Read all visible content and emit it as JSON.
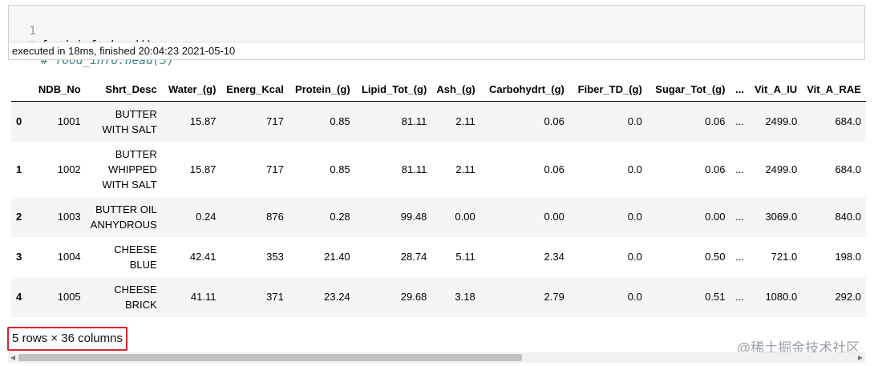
{
  "code_cell": {
    "lines": [
      {
        "num": "1",
        "text": "food_info.head()"
      },
      {
        "num": "2",
        "text": "# food_info.head(3)"
      }
    ],
    "execution_info": "executed in 18ms, finished 20:04:23 2021-05-10"
  },
  "dataframe": {
    "columns": [
      "NDB_No",
      "Shrt_Desc",
      "Water_(g)",
      "Energ_Kcal",
      "Protein_(g)",
      "Lipid_Tot_(g)",
      "Ash_(g)",
      "Carbohydrt_(g)",
      "Fiber_TD_(g)",
      "Sugar_Tot_(g)",
      "...",
      "Vit_A_IU",
      "Vit_A_RAE"
    ],
    "rows": [
      {
        "index": "0",
        "cells": [
          "1001",
          "BUTTER WITH SALT",
          "15.87",
          "717",
          "0.85",
          "81.11",
          "2.11",
          "0.06",
          "0.0",
          "0.06",
          "...",
          "2499.0",
          "684.0"
        ]
      },
      {
        "index": "1",
        "cells": [
          "1002",
          "BUTTER WHIPPED WITH SALT",
          "15.87",
          "717",
          "0.85",
          "81.11",
          "2.11",
          "0.06",
          "0.0",
          "0.06",
          "...",
          "2499.0",
          "684.0"
        ]
      },
      {
        "index": "2",
        "cells": [
          "1003",
          "BUTTER OIL ANHYDROUS",
          "0.24",
          "876",
          "0.28",
          "99.48",
          "0.00",
          "0.00",
          "0.0",
          "0.00",
          "...",
          "3069.0",
          "840.0"
        ]
      },
      {
        "index": "3",
        "cells": [
          "1004",
          "CHEESE BLUE",
          "42.41",
          "353",
          "21.40",
          "28.74",
          "5.11",
          "2.34",
          "0.0",
          "0.50",
          "...",
          "721.0",
          "198.0"
        ]
      },
      {
        "index": "4",
        "cells": [
          "1005",
          "CHEESE BRICK",
          "41.11",
          "371",
          "23.24",
          "29.68",
          "3.18",
          "2.79",
          "0.0",
          "0.51",
          "...",
          "1080.0",
          "292.0"
        ]
      }
    ],
    "shape_summary": "5 rows × 36 columns"
  },
  "watermark": "@稀土掘金技术社区",
  "scrollbar": {
    "left_arrow": "◀",
    "right_arrow": "▶"
  }
}
